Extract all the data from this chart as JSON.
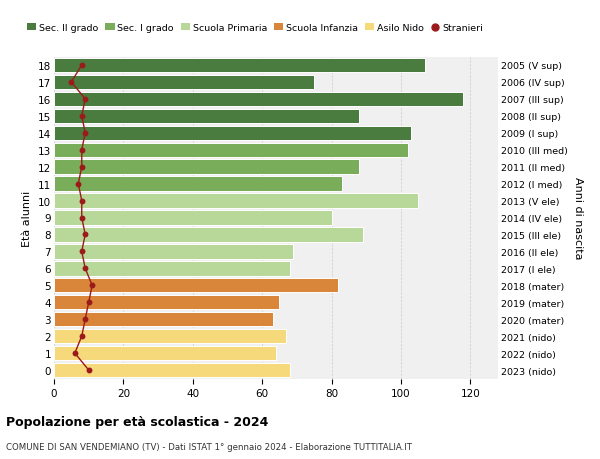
{
  "ages": [
    0,
    1,
    2,
    3,
    4,
    5,
    6,
    7,
    8,
    9,
    10,
    11,
    12,
    13,
    14,
    15,
    16,
    17,
    18
  ],
  "years": [
    "2023 (nido)",
    "2022 (nido)",
    "2021 (nido)",
    "2020 (mater)",
    "2019 (mater)",
    "2018 (mater)",
    "2017 (I ele)",
    "2016 (II ele)",
    "2015 (III ele)",
    "2014 (IV ele)",
    "2013 (V ele)",
    "2012 (I med)",
    "2011 (II med)",
    "2010 (III med)",
    "2009 (I sup)",
    "2008 (II sup)",
    "2007 (III sup)",
    "2006 (IV sup)",
    "2005 (V sup)"
  ],
  "values": [
    68,
    64,
    67,
    63,
    65,
    82,
    68,
    69,
    89,
    80,
    105,
    83,
    88,
    102,
    103,
    88,
    118,
    75,
    107
  ],
  "stranieri": [
    10,
    6,
    8,
    9,
    10,
    11,
    9,
    8,
    9,
    8,
    8,
    7,
    8,
    8,
    9,
    8,
    9,
    5,
    8
  ],
  "bar_colors": [
    "#f5d97a",
    "#f5d97a",
    "#f5d97a",
    "#d9863a",
    "#d9863a",
    "#d9863a",
    "#b8d89a",
    "#b8d89a",
    "#b8d89a",
    "#b8d89a",
    "#b8d89a",
    "#7aad5a",
    "#7aad5a",
    "#7aad5a",
    "#4a7c3f",
    "#4a7c3f",
    "#4a7c3f",
    "#4a7c3f",
    "#4a7c3f"
  ],
  "legend_labels": [
    "Sec. II grado",
    "Sec. I grado",
    "Scuola Primaria",
    "Scuola Infanzia",
    "Asilo Nido",
    "Stranieri"
  ],
  "legend_colors": [
    "#4a7c3f",
    "#7aad5a",
    "#b8d89a",
    "#d9863a",
    "#f5d97a",
    "#9b1b1b"
  ],
  "ylabel_left": "Età alunni",
  "ylabel_right": "Anni di nascita",
  "title": "Popolazione per età scolastica - 2024",
  "subtitle": "COMUNE DI SAN VENDEMIANO (TV) - Dati ISTAT 1° gennaio 2024 - Elaborazione TUTTITALIA.IT",
  "xlim": [
    0,
    128
  ],
  "xticks": [
    0,
    20,
    40,
    60,
    80,
    100,
    120
  ],
  "bg_color": "#ffffff",
  "bar_bg_color": "#f0f0f0",
  "grid_color": "#cccccc",
  "stranieri_color": "#9b1b1b"
}
